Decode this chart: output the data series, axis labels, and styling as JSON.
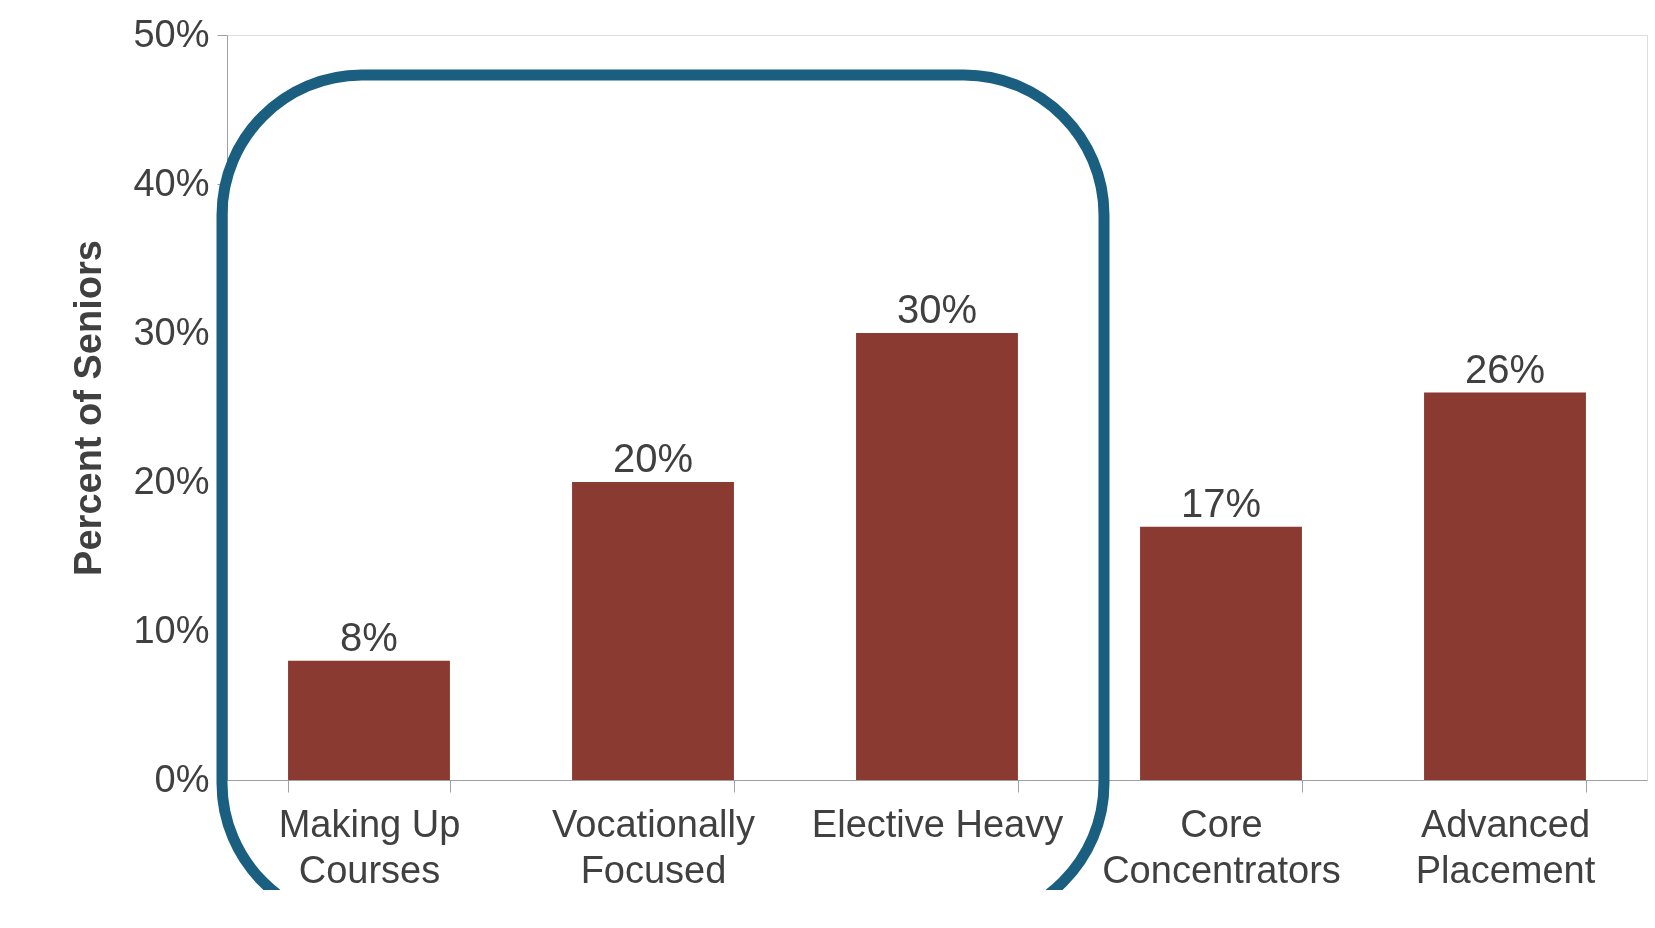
{
  "chart_data": {
    "type": "bar",
    "ylabel": "Percent of Seniors",
    "categories": [
      "Making Up\nCourses",
      "Vocationally\nFocused",
      "Elective Heavy",
      "Core\nConcentrators",
      "Advanced\nPlacement"
    ],
    "values": [
      8,
      20,
      30,
      17,
      26
    ],
    "value_labels": [
      "8%",
      "20%",
      "30%",
      "17%",
      "26%"
    ],
    "color": "#8b3a32",
    "ylim": [
      0,
      50
    ],
    "yticks": [
      {
        "value": 0,
        "label": "0%"
      },
      {
        "value": 10,
        "label": "10%"
      },
      {
        "value": 20,
        "label": "20%"
      },
      {
        "value": 30,
        "label": "30%"
      },
      {
        "value": 40,
        "label": "40%"
      },
      {
        "value": 50,
        "label": "50%"
      }
    ],
    "grid": false
  }
}
